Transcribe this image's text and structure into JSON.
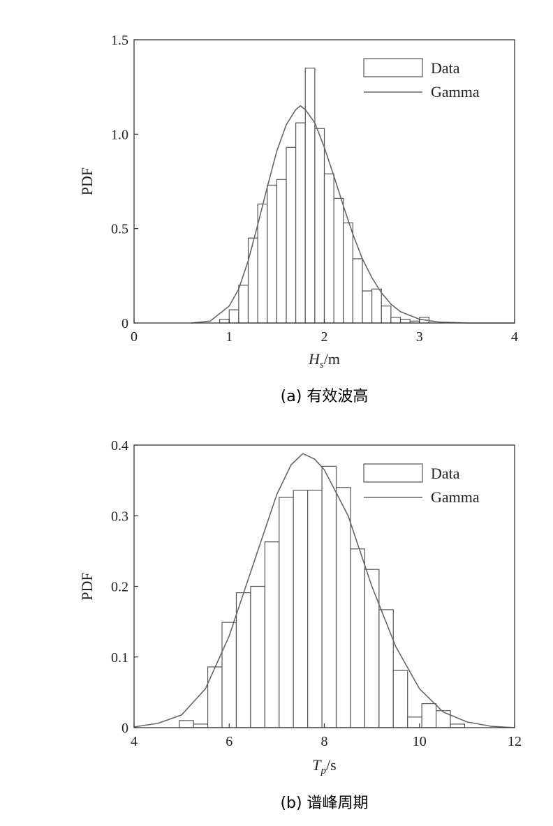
{
  "chart_data": [
    {
      "type": "bar",
      "caption": "(a) 有效波高",
      "xlabel_main": "H",
      "xlabel_sub": "s",
      "xlabel_unit": "/m",
      "ylabel": "PDF",
      "xlim": [
        0,
        4
      ],
      "ylim": [
        0,
        1.5
      ],
      "xticks": [
        0,
        1,
        2,
        3,
        4
      ],
      "xtick_labels": [
        "0",
        "1",
        "2",
        "3",
        "4"
      ],
      "yticks": [
        0,
        0.5,
        1.0,
        1.5
      ],
      "ytick_labels": [
        "0",
        "0.5",
        "1.0",
        "1.5"
      ],
      "legend": {
        "placement": "top-right",
        "data_label": "Data",
        "fit_label": "Gamma"
      },
      "bin_width": 0.1,
      "bin_starts": [
        0.9,
        1.0,
        1.1,
        1.2,
        1.3,
        1.4,
        1.5,
        1.6,
        1.7,
        1.8,
        1.9,
        2.0,
        2.1,
        2.2,
        2.3,
        2.4,
        2.5,
        2.6,
        2.7,
        2.8,
        2.9,
        3.0
      ],
      "values": [
        0.02,
        0.07,
        0.2,
        0.45,
        0.63,
        0.73,
        0.76,
        0.93,
        1.06,
        1.35,
        1.03,
        0.79,
        0.66,
        0.53,
        0.34,
        0.17,
        0.18,
        0.09,
        0.03,
        0.02,
        0.01,
        0.03
      ],
      "fit": {
        "name": "Gamma",
        "x": [
          0.6,
          0.8,
          1.0,
          1.1,
          1.2,
          1.3,
          1.4,
          1.5,
          1.6,
          1.7,
          1.75,
          1.8,
          1.9,
          2.0,
          2.1,
          2.2,
          2.3,
          2.4,
          2.5,
          2.6,
          2.7,
          2.8,
          3.0,
          3.2,
          3.5,
          4.0
        ],
        "y": [
          0.0,
          0.01,
          0.09,
          0.18,
          0.33,
          0.52,
          0.72,
          0.91,
          1.05,
          1.13,
          1.15,
          1.13,
          1.06,
          0.93,
          0.78,
          0.62,
          0.47,
          0.34,
          0.24,
          0.16,
          0.1,
          0.06,
          0.02,
          0.005,
          0.0,
          0.0
        ]
      }
    },
    {
      "type": "bar",
      "caption": "(b) 谱峰周期",
      "xlabel_main": "T",
      "xlabel_sub": "p",
      "xlabel_unit": "/s",
      "ylabel": "PDF",
      "xlim": [
        4,
        12
      ],
      "ylim": [
        0,
        0.4
      ],
      "xticks": [
        4,
        6,
        8,
        10,
        12
      ],
      "xtick_labels": [
        "4",
        "6",
        "8",
        "10",
        "12"
      ],
      "yticks": [
        0,
        0.1,
        0.2,
        0.3,
        0.4
      ],
      "ytick_labels": [
        "0",
        "0.1",
        "0.2",
        "0.3",
        "0.4"
      ],
      "legend": {
        "placement": "top-right",
        "data_label": "Data",
        "fit_label": "Gamma"
      },
      "bin_width": 0.3,
      "bin_starts": [
        4.95,
        5.25,
        5.55,
        5.85,
        6.15,
        6.45,
        6.75,
        7.05,
        7.35,
        7.65,
        7.95,
        8.25,
        8.55,
        8.85,
        9.15,
        9.45,
        9.75,
        10.05,
        10.35,
        10.65
      ],
      "values": [
        0.01,
        0.005,
        0.086,
        0.149,
        0.191,
        0.2,
        0.263,
        0.326,
        0.336,
        0.336,
        0.37,
        0.34,
        0.253,
        0.224,
        0.167,
        0.081,
        0.015,
        0.034,
        0.024,
        0.005
      ],
      "fit": {
        "name": "Gamma",
        "x": [
          4.0,
          4.5,
          5.0,
          5.5,
          6.0,
          6.5,
          7.0,
          7.3,
          7.55,
          7.8,
          8.0,
          8.5,
          9.0,
          9.5,
          10.0,
          10.5,
          11.0,
          11.5,
          12.0
        ],
        "y": [
          0.001,
          0.006,
          0.018,
          0.055,
          0.13,
          0.23,
          0.33,
          0.372,
          0.388,
          0.38,
          0.365,
          0.3,
          0.2,
          0.115,
          0.055,
          0.022,
          0.008,
          0.002,
          0.0
        ]
      }
    }
  ]
}
